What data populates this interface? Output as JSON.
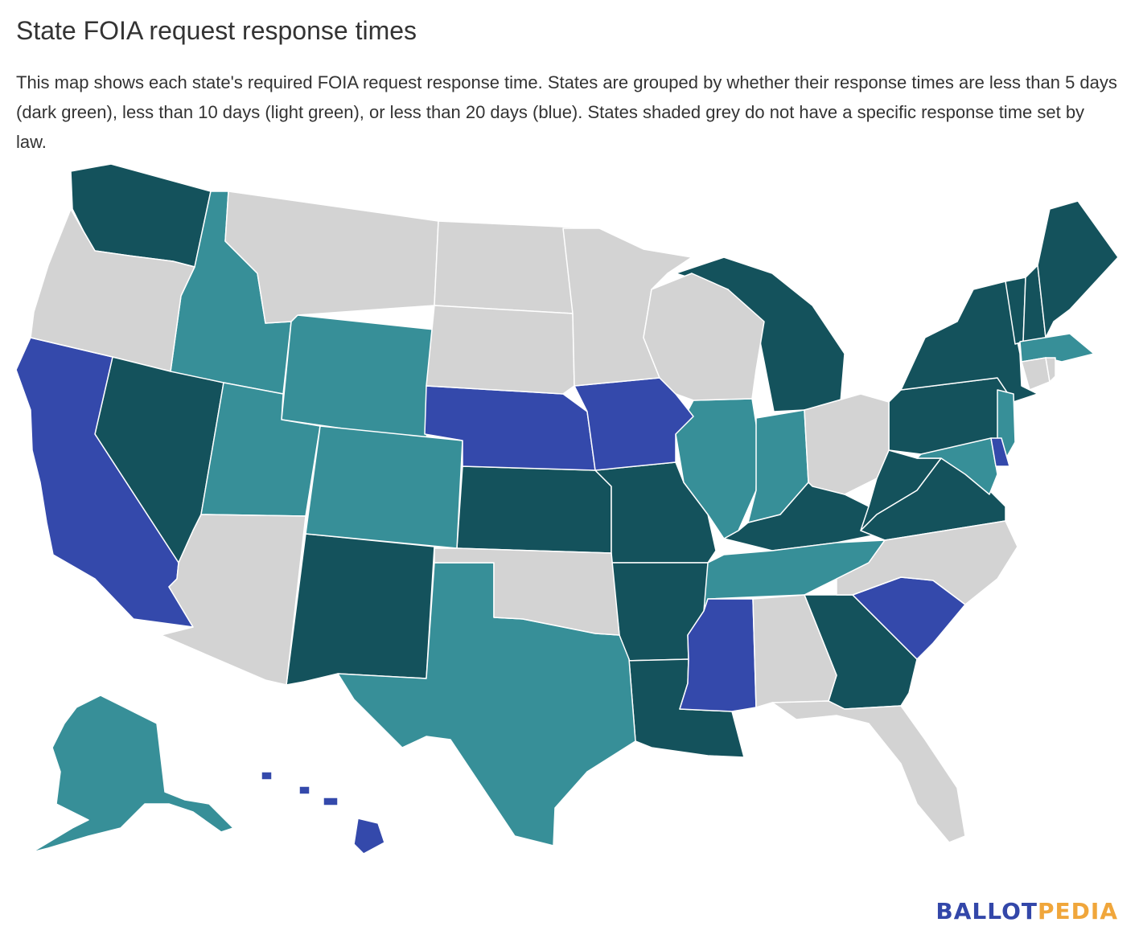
{
  "title": "State FOIA request response times",
  "subtitle": "This map shows each state's required FOIA request response time. States are grouped by whether their response times are less than 5 days (dark green), less than 10 days (light green), or less than 20 days (blue). States shaded grey do not have a specific response time set by law.",
  "logo": {
    "part1": "BALLOT",
    "part2": "PEDIA",
    "color1": "#3347a9",
    "color2": "#f0a63b"
  },
  "colors": {
    "dark_green": "#14525c",
    "light_green": "#378f98",
    "blue": "#3449ab",
    "grey": "#d3d3d3"
  },
  "categories": {
    "dark_green": [
      "WA",
      "NV",
      "NM",
      "KS",
      "MO",
      "AR",
      "LA",
      "KY",
      "WV",
      "VA",
      "GA",
      "MI",
      "PA",
      "NY",
      "VT",
      "NH",
      "ME"
    ],
    "light_green": [
      "ID",
      "WY",
      "UT",
      "CO",
      "TX",
      "IL",
      "IN",
      "TN",
      "AK",
      "NJ",
      "MD",
      "MA"
    ],
    "blue": [
      "CA",
      "NE",
      "IA",
      "MS",
      "SC",
      "DE",
      "HI"
    ],
    "grey": [
      "OR",
      "MT",
      "ND",
      "SD",
      "MN",
      "WI",
      "OH",
      "OK",
      "AZ",
      "AL",
      "FL",
      "NC",
      "CT",
      "RI"
    ]
  }
}
